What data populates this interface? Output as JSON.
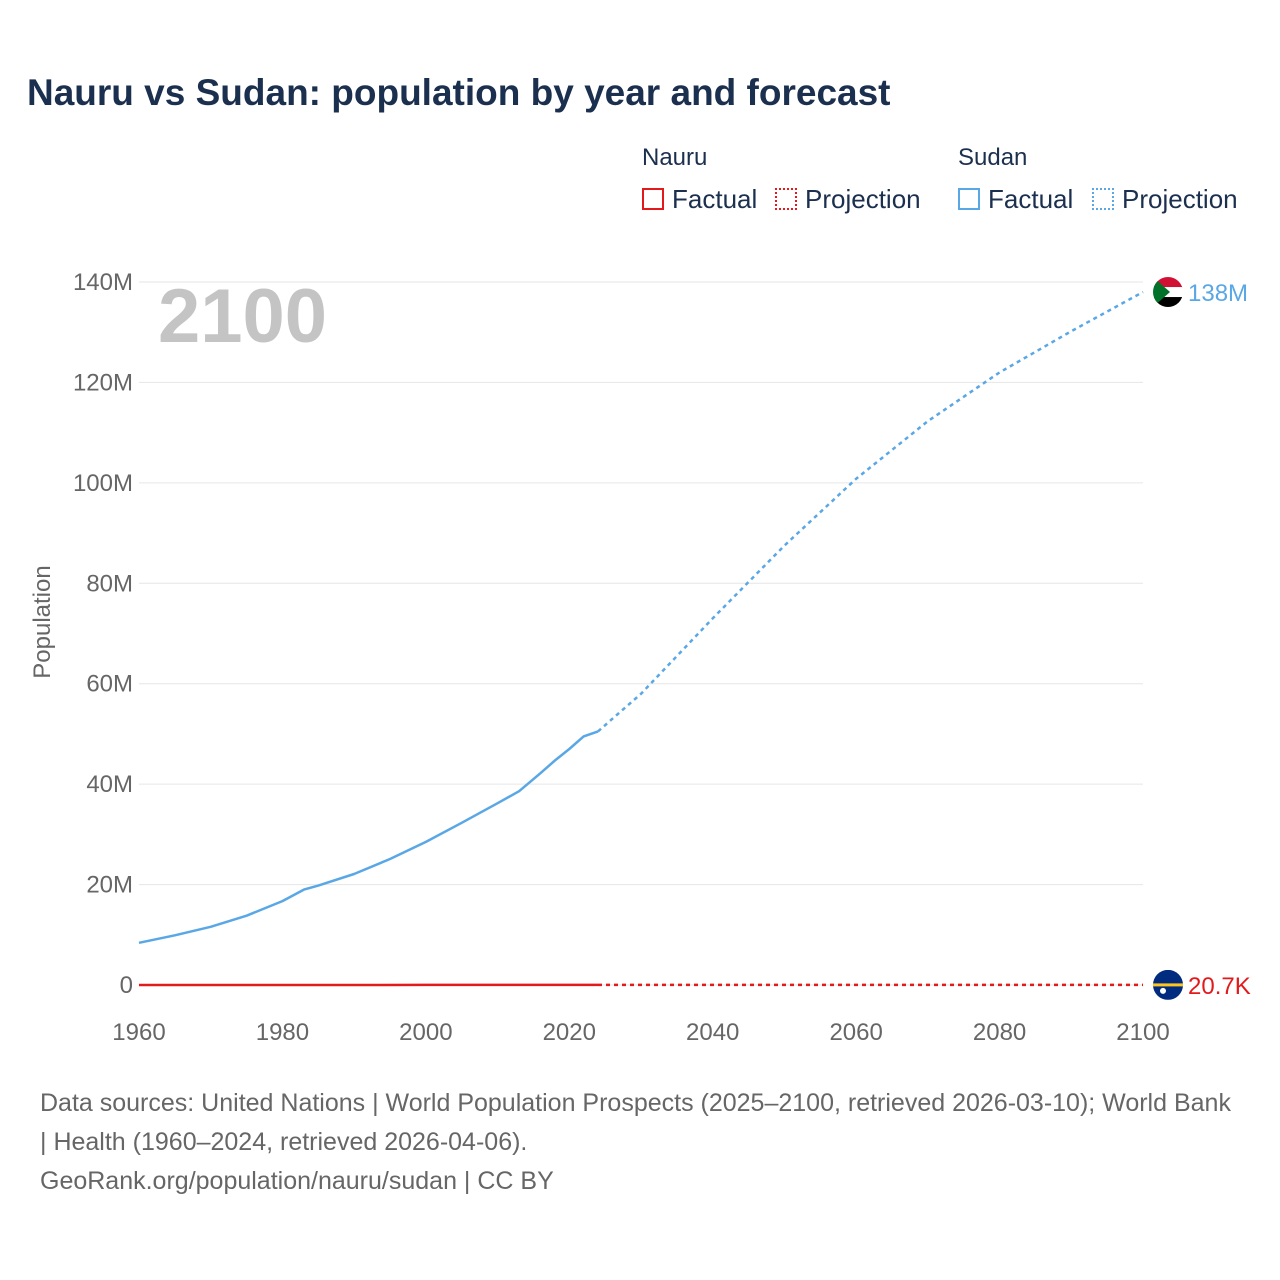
{
  "title": "Nauru vs Sudan: population by year and forecast",
  "legend": {
    "groups": [
      {
        "name": "Nauru",
        "factual": "Factual",
        "projection": "Projection",
        "color": "#e31a1c"
      },
      {
        "name": "Sudan",
        "factual": "Factual",
        "projection": "Projection",
        "color": "#5aa7e6"
      }
    ]
  },
  "year_label": "2100",
  "footer": {
    "sources": "Data sources: United Nations | World Population Prospects (2025–2100, retrieved 2026-03-10); World Bank | Health (1960–2024, retrieved 2026-04-06).",
    "credit": "GeoRank.org/population/nauru/sudan | CC BY"
  },
  "chart_data": {
    "type": "line",
    "title": "Nauru vs Sudan: population by year and forecast",
    "xlabel": "",
    "ylabel": "Population",
    "xlim": [
      1960,
      2100
    ],
    "ylim": [
      0,
      140000000
    ],
    "x_ticks": [
      "1960",
      "1980",
      "2000",
      "2020",
      "2040",
      "2060",
      "2080",
      "2100"
    ],
    "y_ticks": [
      "0",
      "20M",
      "40M",
      "60M",
      "80M",
      "100M",
      "120M",
      "140M"
    ],
    "y_tick_values": [
      0,
      20000000,
      40000000,
      60000000,
      80000000,
      100000000,
      120000000,
      140000000
    ],
    "x_tick_values": [
      1960,
      1980,
      2000,
      2020,
      2040,
      2060,
      2080,
      2100
    ],
    "grid": true,
    "series": [
      {
        "name": "Sudan",
        "color": "#5aa7e6",
        "end_label": "138M",
        "factual": {
          "x": [
            1960,
            1965,
            1970,
            1975,
            1980,
            1983,
            1985,
            1990,
            1995,
            2000,
            2005,
            2010,
            2013,
            2016,
            2018,
            2020,
            2022,
            2024
          ],
          "y": [
            8400000,
            9900000,
            11600000,
            13800000,
            16700000,
            19000000,
            19800000,
            22100000,
            25100000,
            28500000,
            32300000,
            36200000,
            38600000,
            42200000,
            44700000,
            47000000,
            49500000,
            50500000
          ]
        },
        "projection": {
          "x": [
            2024,
            2030,
            2040,
            2050,
            2060,
            2070,
            2080,
            2090,
            2100
          ],
          "y": [
            50500000,
            58000000,
            73000000,
            87500000,
            100800000,
            112300000,
            122000000,
            130200000,
            138000000
          ]
        }
      },
      {
        "name": "Nauru",
        "color": "#e31a1c",
        "end_label": "20.7K",
        "factual": {
          "x": [
            1960,
            1970,
            1980,
            1990,
            2000,
            2010,
            2020,
            2024
          ],
          "y": [
            4500,
            6700,
            7600,
            9600,
            10400,
            10200,
            11800,
            12000
          ]
        },
        "projection": {
          "x": [
            2024,
            2040,
            2060,
            2080,
            2100
          ],
          "y": [
            12000,
            14000,
            16500,
            18800,
            20700
          ]
        }
      }
    ]
  }
}
